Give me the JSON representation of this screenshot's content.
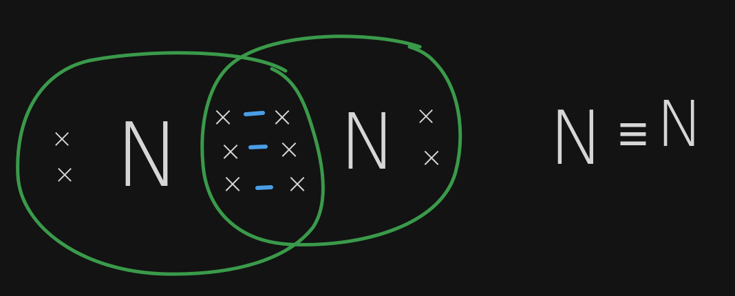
{
  "diagram": {
    "left_atom": {
      "symbol": "N",
      "lone_pair": [
        "×",
        "×"
      ]
    },
    "right_atom": {
      "symbol": "N",
      "lone_pair": [
        "×",
        "×"
      ]
    },
    "shared_region": {
      "left_electrons": [
        "×",
        "×",
        "×"
      ],
      "right_electrons": [
        "×",
        "×",
        "×"
      ],
      "bonds": [
        "-",
        "-",
        "-"
      ]
    },
    "structural_formula": {
      "left": "N",
      "bond": "≡",
      "right": "N"
    }
  },
  "colors": {
    "background": "#131313",
    "ring": "#3a9a4a",
    "text": "#d6d6d6",
    "bond_mark": "#4a9ee6"
  }
}
